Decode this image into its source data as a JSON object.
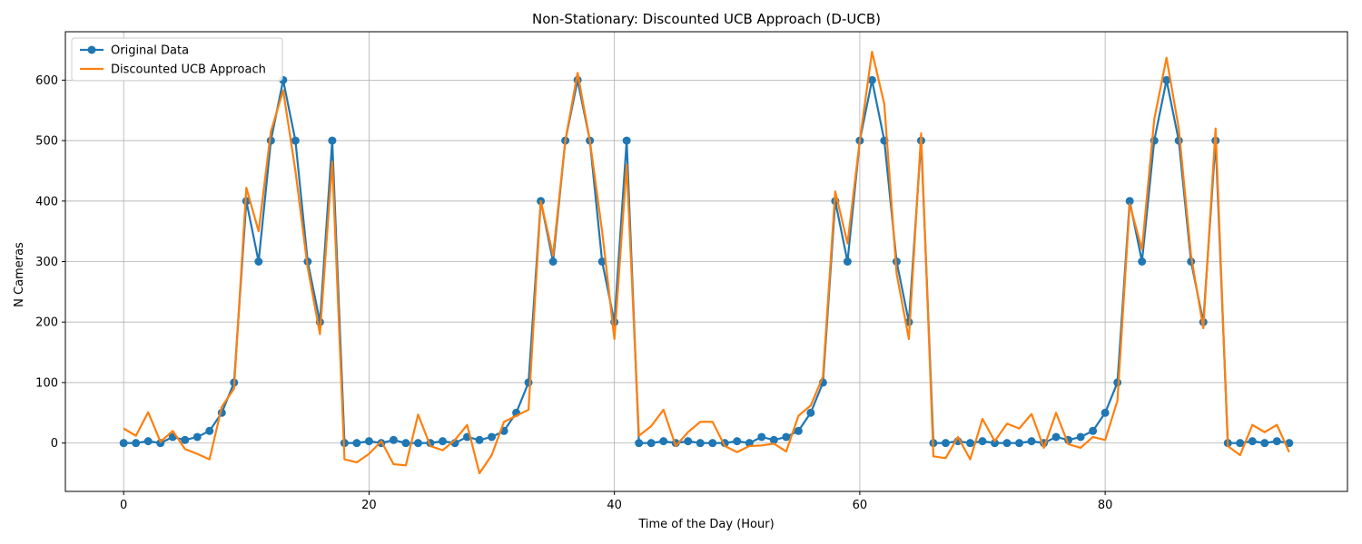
{
  "chart_data": {
    "type": "line",
    "title": "Non-Stationary: Discounted UCB Approach (D-UCB)",
    "xlabel": "Time of the Day (Hour)",
    "ylabel": "N Cameras",
    "xlim": [
      -4.75,
      99.75
    ],
    "ylim": [
      -80,
      680
    ],
    "xticks": [
      0,
      20,
      40,
      60,
      80
    ],
    "yticks": [
      0,
      100,
      200,
      300,
      400,
      500,
      600
    ],
    "grid": true,
    "legend_position": "top-left",
    "series": [
      {
        "name": "Original Data",
        "color": "#1f77b4",
        "marker": "circle",
        "x": [
          0,
          1,
          2,
          3,
          4,
          5,
          6,
          7,
          8,
          9,
          10,
          11,
          12,
          13,
          14,
          15,
          16,
          17,
          18,
          19,
          20,
          21,
          22,
          23,
          24,
          25,
          26,
          27,
          28,
          29,
          30,
          31,
          32,
          33,
          34,
          35,
          36,
          37,
          38,
          39,
          40,
          41,
          42,
          43,
          44,
          45,
          46,
          47,
          48,
          49,
          50,
          51,
          52,
          53,
          54,
          55,
          56,
          57,
          58,
          59,
          60,
          61,
          62,
          63,
          64,
          65,
          66,
          67,
          68,
          69,
          70,
          71,
          72,
          73,
          74,
          75,
          76,
          77,
          78,
          79,
          80,
          81,
          82,
          83,
          84,
          85,
          86,
          87,
          88,
          89,
          90,
          91,
          92,
          93,
          94,
          95
        ],
        "values": [
          0,
          0,
          3,
          0,
          10,
          5,
          10,
          20,
          50,
          100,
          400,
          300,
          500,
          600,
          500,
          300,
          200,
          500,
          0,
          0,
          3,
          0,
          5,
          0,
          0,
          0,
          3,
          0,
          10,
          5,
          10,
          20,
          50,
          100,
          400,
          300,
          500,
          600,
          500,
          300,
          200,
          500,
          0,
          0,
          3,
          0,
          3,
          0,
          0,
          0,
          3,
          0,
          10,
          5,
          10,
          20,
          50,
          100,
          400,
          300,
          500,
          600,
          500,
          300,
          200,
          500,
          0,
          0,
          3,
          0,
          3,
          0,
          0,
          0,
          3,
          0,
          10,
          5,
          10,
          20,
          50,
          100,
          400,
          300,
          500,
          600,
          500,
          300,
          200,
          500,
          0,
          0,
          3,
          0,
          3,
          0
        ]
      },
      {
        "name": "Discounted UCB Approach",
        "color": "#ff7f0e",
        "marker": "none",
        "x": [
          0,
          1,
          2,
          3,
          4,
          5,
          6,
          7,
          8,
          9,
          10,
          11,
          12,
          13,
          14,
          15,
          16,
          17,
          18,
          19,
          20,
          21,
          22,
          23,
          24,
          25,
          26,
          27,
          28,
          29,
          30,
          31,
          32,
          33,
          34,
          35,
          36,
          37,
          38,
          39,
          40,
          41,
          42,
          43,
          44,
          45,
          46,
          47,
          48,
          49,
          50,
          51,
          52,
          53,
          54,
          55,
          56,
          57,
          58,
          59,
          60,
          61,
          62,
          63,
          64,
          65,
          66,
          67,
          68,
          69,
          70,
          71,
          72,
          73,
          74,
          75,
          76,
          77,
          78,
          79,
          80,
          81,
          82,
          83,
          84,
          85,
          86,
          87,
          88,
          89,
          90,
          91,
          92,
          93,
          94,
          95
        ],
        "values": [
          24,
          12,
          51,
          2,
          20,
          -10,
          -18,
          -27,
          60,
          90,
          422,
          350,
          515,
          583,
          450,
          290,
          180,
          465,
          -27,
          -32,
          -18,
          3,
          -35,
          -37,
          47,
          -5,
          -12,
          5,
          30,
          -50,
          -20,
          35,
          45,
          55,
          400,
          310,
          500,
          612,
          500,
          350,
          172,
          460,
          12,
          28,
          55,
          -5,
          18,
          35,
          35,
          -5,
          -15,
          -5,
          -4,
          -1,
          -14,
          45,
          62,
          110,
          416,
          330,
          500,
          647,
          560,
          280,
          172,
          512,
          -22,
          -25,
          10,
          -27,
          40,
          3,
          32,
          24,
          48,
          -8,
          50,
          -2,
          -8,
          10,
          5,
          70,
          395,
          320,
          535,
          637,
          520,
          310,
          190,
          520,
          -5,
          -20,
          30,
          18,
          30,
          -15
        ]
      }
    ]
  }
}
